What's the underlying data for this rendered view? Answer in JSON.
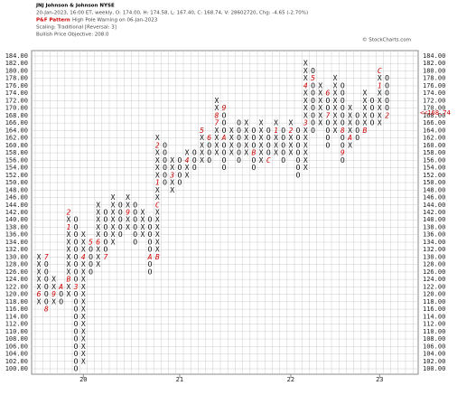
{
  "chart_data": {
    "type": "point-and-figure",
    "title": "JNJ Johnson & Johnson NYSE",
    "subtitle": "20-Jan-2023, 16:00 ET, weekly, O: 174.00, H: 174.58, L: 167.40, C: 168.74, V: 28602720, Chg: -4.65 (-2.70%)",
    "pattern_label": "P&F Pattern",
    "pattern": "High Pole Warning on 06-Jan-2023",
    "scaling": "Scaling: Traditional [Reversal: 3]",
    "objective": "Bullish Price Objective: 208.0",
    "credit": "© StockCharts.com",
    "ylim": [
      100,
      184
    ],
    "yticks": [
      {
        "value": 184,
        "label": "184.00"
      },
      {
        "value": 182,
        "label": "182.00"
      },
      {
        "value": 180,
        "label": "180.00"
      },
      {
        "value": 178,
        "label": "178.00"
      },
      {
        "value": 176,
        "label": "176.00"
      },
      {
        "value": 174,
        "label": "174.00"
      },
      {
        "value": 172,
        "label": "172.00"
      },
      {
        "value": 170,
        "label": "170.00"
      },
      {
        "value": 168,
        "label": "168.00"
      },
      {
        "value": 166,
        "label": "166.00"
      },
      {
        "value": 164,
        "label": "164.00"
      },
      {
        "value": 162,
        "label": "162.00"
      },
      {
        "value": 160,
        "label": "160.00"
      },
      {
        "value": 158,
        "label": "158.00"
      },
      {
        "value": 156,
        "label": "156.00"
      },
      {
        "value": 154,
        "label": "154.00"
      },
      {
        "value": 152,
        "label": "152.00"
      },
      {
        "value": 150,
        "label": "150.00"
      },
      {
        "value": 148,
        "label": "148.00"
      },
      {
        "value": 146,
        "label": "146.00"
      },
      {
        "value": 144,
        "label": "144.00"
      },
      {
        "value": 142,
        "label": "142.00"
      },
      {
        "value": 140,
        "label": "140.00"
      },
      {
        "value": 138,
        "label": "138.00"
      },
      {
        "value": 136,
        "label": "136.00"
      },
      {
        "value": 134,
        "label": "134.00"
      },
      {
        "value": 132,
        "label": "132.00"
      },
      {
        "value": 130,
        "label": "130.00"
      },
      {
        "value": 128,
        "label": "128.00"
      },
      {
        "value": 126,
        "label": "126.00"
      },
      {
        "value": 124,
        "label": "124.00"
      },
      {
        "value": 122,
        "label": "122.00"
      },
      {
        "value": 120,
        "label": "120.00"
      },
      {
        "value": 118,
        "label": "118.00"
      },
      {
        "value": 116,
        "label": "116.00"
      },
      {
        "value": 114,
        "label": "114.00"
      },
      {
        "value": 112,
        "label": "112.00"
      },
      {
        "value": 110,
        "label": "110.00"
      },
      {
        "value": 108,
        "label": "108.00"
      },
      {
        "value": 106,
        "label": "106.00"
      },
      {
        "value": 104,
        "label": "104.00"
      },
      {
        "value": 102,
        "label": "102.00"
      },
      {
        "value": 100,
        "label": "100.00"
      }
    ],
    "box_size": 2,
    "last_price": {
      "value": 168.74,
      "label": "<<168.74"
    },
    "x_labels": [
      {
        "column": 6,
        "label": "20"
      },
      {
        "column": 19,
        "label": "21"
      },
      {
        "column": 34,
        "label": "22"
      },
      {
        "column": 46,
        "label": "23"
      }
    ],
    "columns": [
      {
        "type": "X",
        "low": 118,
        "high": 130,
        "months": [
          {
            "value": 120,
            "label": "6"
          }
        ]
      },
      {
        "type": "O",
        "low": 116,
        "high": 130,
        "months": [
          {
            "value": 130,
            "label": "7"
          },
          {
            "value": 116,
            "label": "8"
          }
        ]
      },
      {
        "type": "X",
        "low": 118,
        "high": 124,
        "months": [
          {
            "value": 120,
            "label": "9"
          }
        ]
      },
      {
        "type": "O",
        "low": 118,
        "high": 122,
        "months": [
          {
            "value": 122,
            "label": "A"
          }
        ]
      },
      {
        "type": "X",
        "low": 120,
        "high": 142,
        "months": [
          {
            "value": 124,
            "label": "B"
          },
          {
            "value": 138,
            "label": "1"
          },
          {
            "value": 142,
            "label": "2"
          }
        ]
      },
      {
        "type": "O",
        "low": 100,
        "high": 140,
        "months": [
          {
            "value": 122,
            "label": "3"
          }
        ]
      },
      {
        "type": "X",
        "low": 102,
        "high": 136,
        "months": [
          {
            "value": 130,
            "label": "4"
          }
        ]
      },
      {
        "type": "O",
        "low": 126,
        "high": 134,
        "months": [
          {
            "value": 134,
            "label": "5"
          }
        ]
      },
      {
        "type": "X",
        "low": 128,
        "high": 144,
        "months": [
          {
            "value": 134,
            "label": "6"
          }
        ]
      },
      {
        "type": "O",
        "low": 130,
        "high": 142,
        "months": [
          {
            "value": 130,
            "label": "7"
          }
        ]
      },
      {
        "type": "X",
        "low": 134,
        "high": 146,
        "months": []
      },
      {
        "type": "O",
        "low": 136,
        "high": 144,
        "months": []
      },
      {
        "type": "X",
        "low": 138,
        "high": 146,
        "months": [
          {
            "value": 142,
            "label": "9"
          }
        ]
      },
      {
        "type": "O",
        "low": 134,
        "high": 144,
        "months": []
      },
      {
        "type": "X",
        "low": 136,
        "high": 142,
        "months": []
      },
      {
        "type": "O",
        "low": 126,
        "high": 140,
        "months": [
          {
            "value": 130,
            "label": "A"
          }
        ]
      },
      {
        "type": "X",
        "low": 130,
        "high": 162,
        "months": [
          {
            "value": 130,
            "label": "B"
          },
          {
            "value": 144,
            "label": "C"
          },
          {
            "value": 150,
            "label": "1"
          },
          {
            "value": 160,
            "label": "2"
          }
        ]
      },
      {
        "type": "O",
        "low": 150,
        "high": 160,
        "months": []
      },
      {
        "type": "X",
        "low": 148,
        "high": 156,
        "months": [
          {
            "value": 152,
            "label": "3"
          }
        ]
      },
      {
        "type": "O",
        "low": 150,
        "high": 156,
        "months": []
      },
      {
        "type": "X",
        "low": 152,
        "high": 158,
        "months": [
          {
            "value": 156,
            "label": "4"
          }
        ]
      },
      {
        "type": "O",
        "low": 154,
        "high": 158,
        "months": []
      },
      {
        "type": "X",
        "low": 156,
        "high": 164,
        "months": [
          {
            "value": 164,
            "label": "5"
          }
        ]
      },
      {
        "type": "O",
        "low": 156,
        "high": 162,
        "months": [
          {
            "value": 162,
            "label": "6"
          }
        ]
      },
      {
        "type": "X",
        "low": 158,
        "high": 172,
        "months": [
          {
            "value": 166,
            "label": "7"
          },
          {
            "value": 168,
            "label": "8"
          }
        ]
      },
      {
        "type": "O",
        "low": 154,
        "high": 170,
        "months": [
          {
            "value": 170,
            "label": "9"
          },
          {
            "value": 162,
            "label": "A"
          }
        ]
      },
      {
        "type": "X",
        "low": 158,
        "high": 164,
        "months": []
      },
      {
        "type": "O",
        "low": 156,
        "high": 166,
        "months": []
      },
      {
        "type": "X",
        "low": 158,
        "high": 166,
        "months": []
      },
      {
        "type": "O",
        "low": 154,
        "high": 164,
        "months": [
          {
            "value": 158,
            "label": "B"
          }
        ]
      },
      {
        "type": "X",
        "low": 156,
        "high": 166,
        "months": []
      },
      {
        "type": "O",
        "low": 156,
        "high": 164,
        "months": [
          {
            "value": 156,
            "label": "C"
          }
        ]
      },
      {
        "type": "X",
        "low": 158,
        "high": 166,
        "months": [
          {
            "value": 164,
            "label": "1"
          }
        ]
      },
      {
        "type": "O",
        "low": 156,
        "high": 164,
        "months": []
      },
      {
        "type": "X",
        "low": 158,
        "high": 166,
        "months": [
          {
            "value": 164,
            "label": "2"
          }
        ]
      },
      {
        "type": "O",
        "low": 152,
        "high": 164,
        "months": []
      },
      {
        "type": "X",
        "low": 154,
        "high": 182,
        "months": [
          {
            "value": 166,
            "label": "3"
          },
          {
            "value": 176,
            "label": "4"
          }
        ]
      },
      {
        "type": "O",
        "low": 164,
        "high": 180,
        "months": [
          {
            "value": 178,
            "label": "5"
          }
        ]
      },
      {
        "type": "X",
        "low": 166,
        "high": 176,
        "months": []
      },
      {
        "type": "O",
        "low": 160,
        "high": 174,
        "months": [
          {
            "value": 174,
            "label": "6"
          },
          {
            "value": 168,
            "label": "7"
          }
        ]
      },
      {
        "type": "X",
        "low": 164,
        "high": 178,
        "months": []
      },
      {
        "type": "O",
        "low": 156,
        "high": 176,
        "months": [
          {
            "value": 164,
            "label": "8"
          },
          {
            "value": 158,
            "label": "9"
          }
        ]
      },
      {
        "type": "X",
        "low": 160,
        "high": 170,
        "months": [
          {
            "value": 162,
            "label": "A"
          }
        ]
      },
      {
        "type": "O",
        "low": 162,
        "high": 168,
        "months": []
      },
      {
        "type": "X",
        "low": 164,
        "high": 174,
        "months": [
          {
            "value": 164,
            "label": "B"
          }
        ]
      },
      {
        "type": "O",
        "low": 166,
        "high": 172,
        "months": []
      },
      {
        "type": "X",
        "low": 166,
        "high": 180,
        "months": [
          {
            "value": 180,
            "label": "C"
          },
          {
            "value": 176,
            "label": "1"
          }
        ]
      },
      {
        "type": "O",
        "low": 168,
        "high": 178,
        "months": [
          {
            "value": 168,
            "label": "2"
          }
        ]
      }
    ]
  }
}
